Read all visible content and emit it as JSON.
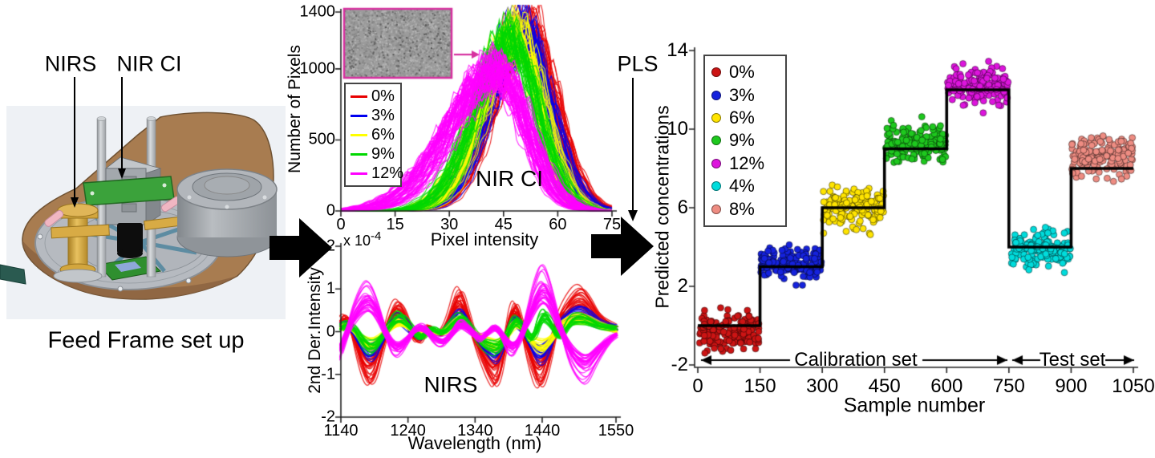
{
  "left_panel": {
    "nirs_label": "NIRS",
    "nirci_label": "NIR CI",
    "caption": "Feed Frame set up"
  },
  "pls_label": "PLS",
  "chart_data": [
    {
      "id": "nir-ci-histograms",
      "type": "line",
      "title": "NIR CI",
      "xlabel": "Pixel intensity",
      "ylabel": "Number of Pixels",
      "xlim": [
        0,
        75
      ],
      "ylim": [
        0,
        1400
      ],
      "xticks": [
        0,
        15,
        30,
        45,
        60,
        75
      ],
      "yticks": [
        0,
        500,
        1000,
        1400
      ],
      "legend_position": "upper-left",
      "inset_image": "grayscale NIR chemical image",
      "series": [
        {
          "name": "0%",
          "color": "#e80000",
          "peak_x": 51.5,
          "peak_height": 1320,
          "sigma_left": 10.0,
          "sigma_right": 7.5,
          "curves": 48
        },
        {
          "name": "3%",
          "color": "#0000f0",
          "peak_x": 50.0,
          "peak_height": 1300,
          "sigma_left": 9.5,
          "sigma_right": 7.2,
          "curves": 42
        },
        {
          "name": "6%",
          "color": "#ffff00",
          "peak_x": 48.5,
          "peak_height": 1280,
          "sigma_left": 9.5,
          "sigma_right": 7.2,
          "curves": 42
        },
        {
          "name": "9%",
          "color": "#00d800",
          "peak_x": 47.0,
          "peak_height": 1240,
          "sigma_left": 9.5,
          "sigma_right": 7.5,
          "curves": 40
        },
        {
          "name": "12%",
          "color": "#ff00ff",
          "peak_x": 43.0,
          "peak_height": 1010,
          "sigma_left": 13.0,
          "sigma_right": 8.5,
          "curves": 60
        }
      ]
    },
    {
      "id": "nirs-spectra",
      "type": "line",
      "title": "NIRS",
      "xlabel": "Wavelength (nm)",
      "ylabel": "2nd Der.Intensity",
      "y_scale_label": {
        "base": "x 10",
        "exponent": "-4"
      },
      "xlim": [
        1140,
        1550
      ],
      "ylim": [
        -2,
        2
      ],
      "xticks": [
        1140,
        1240,
        1340,
        1440,
        1550
      ],
      "yticks": [
        -2,
        -1,
        0,
        1,
        2
      ],
      "series": [
        {
          "name": "0%",
          "color": "#e80000",
          "band_curves": 26,
          "points": [
            [
              1140,
              0.25
            ],
            [
              1150,
              0.55
            ],
            [
              1172,
              -0.95
            ],
            [
              1186,
              -1.25
            ],
            [
              1200,
              -0.45
            ],
            [
              1216,
              0.55
            ],
            [
              1228,
              0.7
            ],
            [
              1243,
              0.1
            ],
            [
              1255,
              -0.35
            ],
            [
              1270,
              0.2
            ],
            [
              1285,
              -0.15
            ],
            [
              1300,
              0.2
            ],
            [
              1316,
              1.1
            ],
            [
              1330,
              0.35
            ],
            [
              1344,
              -0.4
            ],
            [
              1360,
              -1.0
            ],
            [
              1372,
              -1.3
            ],
            [
              1385,
              -0.3
            ],
            [
              1397,
              0.75
            ],
            [
              1408,
              0.3
            ],
            [
              1422,
              -0.7
            ],
            [
              1436,
              -1.35
            ],
            [
              1448,
              -0.8
            ],
            [
              1462,
              0.25
            ],
            [
              1478,
              0.7
            ],
            [
              1495,
              1.0
            ],
            [
              1508,
              0.8
            ],
            [
              1525,
              0.3
            ],
            [
              1550,
              0.1
            ]
          ]
        },
        {
          "name": "3%",
          "color": "#0000f0",
          "band_curves": 20,
          "points": [
            [
              1140,
              0.15
            ],
            [
              1152,
              0.3
            ],
            [
              1174,
              -0.5
            ],
            [
              1188,
              -0.65
            ],
            [
              1202,
              -0.2
            ],
            [
              1218,
              0.3
            ],
            [
              1230,
              0.4
            ],
            [
              1245,
              0.05
            ],
            [
              1258,
              -0.2
            ],
            [
              1272,
              0.1
            ],
            [
              1288,
              -0.1
            ],
            [
              1302,
              0.15
            ],
            [
              1318,
              0.55
            ],
            [
              1332,
              0.15
            ],
            [
              1346,
              -0.25
            ],
            [
              1362,
              -0.55
            ],
            [
              1374,
              -0.65
            ],
            [
              1387,
              -0.15
            ],
            [
              1398,
              0.4
            ],
            [
              1410,
              0.15
            ],
            [
              1424,
              -0.4
            ],
            [
              1438,
              -0.7
            ],
            [
              1450,
              -0.45
            ],
            [
              1464,
              0.15
            ],
            [
              1480,
              0.45
            ],
            [
              1497,
              0.55
            ],
            [
              1510,
              0.45
            ],
            [
              1527,
              0.2
            ],
            [
              1550,
              0.1
            ]
          ]
        },
        {
          "name": "6%",
          "color": "#ffff00",
          "band_curves": 20,
          "points": [
            [
              1140,
              0.1
            ],
            [
              1152,
              0.2
            ],
            [
              1174,
              -0.3
            ],
            [
              1188,
              -0.4
            ],
            [
              1202,
              -0.1
            ],
            [
              1218,
              0.2
            ],
            [
              1230,
              0.25
            ],
            [
              1245,
              0.05
            ],
            [
              1258,
              -0.15
            ],
            [
              1272,
              0.05
            ],
            [
              1288,
              -0.05
            ],
            [
              1302,
              0.1
            ],
            [
              1318,
              0.35
            ],
            [
              1332,
              0.1
            ],
            [
              1346,
              -0.15
            ],
            [
              1362,
              -0.35
            ],
            [
              1374,
              -0.4
            ],
            [
              1387,
              -0.1
            ],
            [
              1398,
              0.25
            ],
            [
              1410,
              0.1
            ],
            [
              1424,
              -0.25
            ],
            [
              1438,
              -0.45
            ],
            [
              1450,
              -0.3
            ],
            [
              1464,
              0.1
            ],
            [
              1480,
              0.3
            ],
            [
              1497,
              0.35
            ],
            [
              1510,
              0.3
            ],
            [
              1527,
              0.15
            ],
            [
              1550,
              0.05
            ]
          ]
        },
        {
          "name": "9%",
          "color": "#00d800",
          "band_curves": 20,
          "points": [
            [
              1140,
              0.1
            ],
            [
              1154,
              0.35
            ],
            [
              1176,
              -0.4
            ],
            [
              1190,
              -0.5
            ],
            [
              1204,
              -0.1
            ],
            [
              1220,
              0.4
            ],
            [
              1232,
              0.45
            ],
            [
              1247,
              0.05
            ],
            [
              1260,
              -0.25
            ],
            [
              1274,
              0.15
            ],
            [
              1290,
              -0.1
            ],
            [
              1304,
              0.2
            ],
            [
              1320,
              0.45
            ],
            [
              1334,
              0.1
            ],
            [
              1348,
              -0.3
            ],
            [
              1364,
              -0.45
            ],
            [
              1376,
              -0.5
            ],
            [
              1389,
              -0.05
            ],
            [
              1400,
              0.4
            ],
            [
              1412,
              0.15
            ],
            [
              1426,
              -0.35
            ],
            [
              1440,
              0.55
            ],
            [
              1452,
              0.35
            ],
            [
              1466,
              -0.3
            ],
            [
              1482,
              0.35
            ],
            [
              1499,
              0.4
            ],
            [
              1512,
              0.3
            ],
            [
              1529,
              0.15
            ],
            [
              1550,
              0.1
            ]
          ]
        },
        {
          "name": "12%",
          "color": "#ff00ff",
          "band_curves": 30,
          "points": [
            [
              1140,
              -0.55
            ],
            [
              1154,
              0.3
            ],
            [
              1170,
              0.9
            ],
            [
              1182,
              1.05
            ],
            [
              1196,
              0.6
            ],
            [
              1210,
              -0.2
            ],
            [
              1222,
              -0.55
            ],
            [
              1236,
              -0.35
            ],
            [
              1250,
              0.1
            ],
            [
              1264,
              0.15
            ],
            [
              1278,
              -0.2
            ],
            [
              1292,
              -0.35
            ],
            [
              1306,
              -0.05
            ],
            [
              1318,
              0.3
            ],
            [
              1332,
              0.1
            ],
            [
              1346,
              -0.25
            ],
            [
              1358,
              -0.05
            ],
            [
              1370,
              0.2
            ],
            [
              1382,
              -0.15
            ],
            [
              1394,
              -0.55
            ],
            [
              1406,
              -0.3
            ],
            [
              1418,
              0.35
            ],
            [
              1430,
              1.05
            ],
            [
              1441,
              1.4
            ],
            [
              1452,
              1.05
            ],
            [
              1466,
              0.2
            ],
            [
              1480,
              -0.55
            ],
            [
              1494,
              -0.95
            ],
            [
              1507,
              -1.05
            ],
            [
              1522,
              -0.65
            ],
            [
              1536,
              -0.3
            ],
            [
              1550,
              -0.1
            ]
          ]
        }
      ]
    },
    {
      "id": "pls-predictions",
      "type": "scatter",
      "xlabel": "Sample number",
      "ylabel": "Predicted concentrations",
      "xlim": [
        0,
        1050
      ],
      "ylim": [
        -2,
        14
      ],
      "xticks": [
        0,
        150,
        300,
        450,
        600,
        750,
        900,
        1050
      ],
      "yticks": [
        -2,
        2,
        6,
        10,
        14
      ],
      "reference_steps": [
        {
          "x": [
            0,
            150
          ],
          "y": 0
        },
        {
          "x": [
            150,
            300
          ],
          "y": 3
        },
        {
          "x": [
            300,
            450
          ],
          "y": 6
        },
        {
          "x": [
            450,
            600
          ],
          "y": 9
        },
        {
          "x": [
            600,
            750
          ],
          "y": 12
        },
        {
          "x": [
            750,
            900
          ],
          "y": 4
        },
        {
          "x": [
            900,
            1050
          ],
          "y": 8
        }
      ],
      "series": [
        {
          "name": "0%",
          "color": "#cc1414",
          "x_range": [
            4,
            148
          ],
          "center": -0.3,
          "spread": 1.1,
          "points": 165
        },
        {
          "name": "3%",
          "color": "#1522dd",
          "x_range": [
            152,
            298
          ],
          "center": 3.15,
          "spread": 0.95,
          "points": 165
        },
        {
          "name": "6%",
          "color": "#ffe400",
          "x_range": [
            302,
            448
          ],
          "center": 6.05,
          "spread": 1.3,
          "points": 165
        },
        {
          "name": "9%",
          "color": "#1ec81e",
          "x_range": [
            452,
            598
          ],
          "center": 9.25,
          "spread": 1.2,
          "points": 165
        },
        {
          "name": "12%",
          "color": "#dd14dd",
          "x_range": [
            602,
            748
          ],
          "center": 12.15,
          "spread": 1.15,
          "points": 165
        },
        {
          "name": "4%",
          "color": "#00dcdc",
          "x_range": [
            755,
            898
          ],
          "center": 3.85,
          "spread": 1.0,
          "points": 165
        },
        {
          "name": "8%",
          "color": "#ee8c82",
          "x_range": [
            902,
            1048
          ],
          "center": 8.65,
          "spread": 1.2,
          "points": 165
        }
      ],
      "annotations": [
        {
          "text": "Calibration set",
          "x_range": [
            0,
            750
          ]
        },
        {
          "text": "Test set",
          "x_range": [
            750,
            1050
          ]
        }
      ]
    }
  ]
}
